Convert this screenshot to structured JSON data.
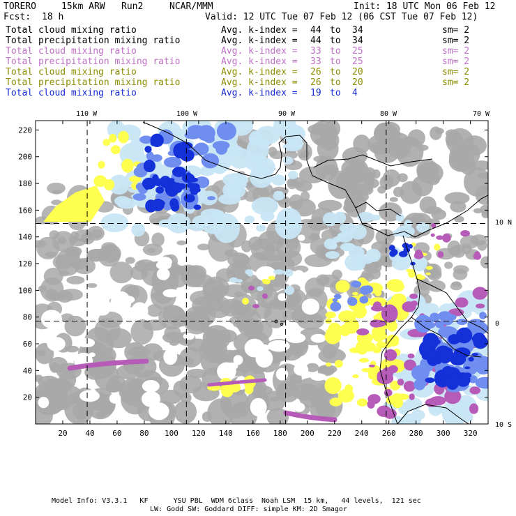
{
  "header": {
    "model": "TORERO",
    "resolution": "15km ARW",
    "run": "Run2",
    "org": "NCAR/MMM",
    "init": "Init: 18 UTC Mon 06 Feb 12",
    "fcst_label": "Fcst:",
    "fcst_value": "18 h",
    "valid": "Valid: 12 UTC Tue 07 Feb 12 (06 CST Tue 07 Feb 12)"
  },
  "fields": [
    {
      "name": "Total cloud mixing ratio",
      "index_label": "Avg. k-index =",
      "k_from": "44",
      "to": "to",
      "k_to": "34",
      "smooth": "sm= 2",
      "color": "#000000"
    },
    {
      "name": "Total precipitation mixing ratio",
      "index_label": "Avg. k-index =",
      "k_from": "44",
      "to": "to",
      "k_to": "34",
      "smooth": "sm= 2",
      "color": "#000000"
    },
    {
      "name": "Total cloud mixing ratio",
      "index_label": "Avg. k-index =",
      "k_from": "33",
      "to": "to",
      "k_to": "25",
      "smooth": "sm= 2",
      "color": "#c070c8"
    },
    {
      "name": "Total precipitation mixing ratio",
      "index_label": "Avg. k-index =",
      "k_from": "33",
      "to": "to",
      "k_to": "25",
      "smooth": "sm= 2",
      "color": "#c070c8"
    },
    {
      "name": "Total cloud mixing ratio",
      "index_label": "Avg. k-index =",
      "k_from": "26",
      "to": "to",
      "k_to": "20",
      "smooth": "sm= 2",
      "color": "#8c8c00"
    },
    {
      "name": "Total precipitation mixing ratio",
      "index_label": "Avg. k-index =",
      "k_from": "26",
      "to": "to",
      "k_to": "20",
      "smooth": "sm= 2",
      "color": "#8c8c00"
    },
    {
      "name": "Total cloud mixing ratio",
      "index_label": "Avg. k-index =",
      "k_from": "19",
      "to": "to",
      "k_to": "4",
      "smooth": "",
      "color": "#1428d2"
    }
  ],
  "map": {
    "lon_labels": [
      "110 W",
      "100 W",
      "90 W",
      "80 W",
      "70 W"
    ],
    "lat_labels": [
      "10 N",
      "0",
      "10 S"
    ],
    "x_ticks": [
      "20",
      "40",
      "60",
      "80",
      "100",
      "120",
      "140",
      "160",
      "180",
      "200",
      "220",
      "240",
      "260",
      "280",
      "300",
      "320"
    ],
    "y_ticks": [
      "220",
      "200",
      "180",
      "160",
      "140",
      "120",
      "100",
      "80",
      "60",
      "40",
      "20"
    ],
    "grid_x_values": [
      38,
      111,
      184,
      258
    ],
    "grid_y_values": [
      150,
      77
    ],
    "colors": {
      "cloud_gray": "#a8a8a8",
      "light_blue": "#c8e6f5",
      "mid_blue": "#6f8ef0",
      "dark_blue": "#1430d8",
      "yellow": "#ffff50",
      "magenta": "#b65cb8",
      "coast": "#000000"
    }
  },
  "footer": {
    "line1": "Model Info: V3.3.1   KF      YSU PBL  WDM 6class  Noah LSM  15 km,   44 levels,  121 sec",
    "line2": "LW: Godd SW: Goddard DIFF: simple KM: 2D Smagor"
  }
}
